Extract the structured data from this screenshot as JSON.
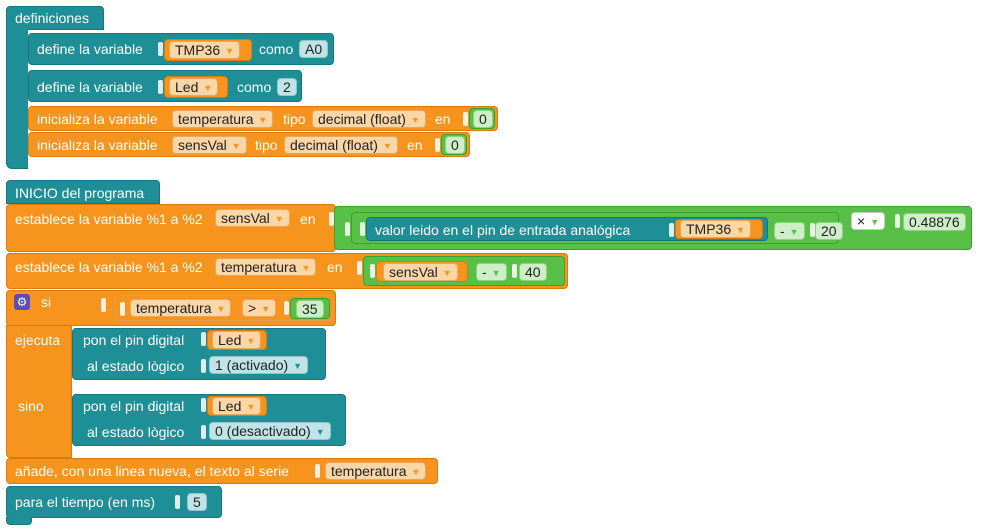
{
  "definiciones": {
    "header": "definiciones",
    "define1": {
      "label": "define la variable",
      "var": "TMP36",
      "como": "como",
      "value": "A0"
    },
    "define2": {
      "label": "define la variable",
      "var": "Led",
      "como": "como",
      "value": "2"
    },
    "init1": {
      "label": "inicializa la variable",
      "var": "temperatura",
      "tipo": "tipo",
      "type": "decimal (float)",
      "en": "en",
      "value": "0"
    },
    "init2": {
      "label": "inicializa la variable",
      "var": "sensVal",
      "tipo": "tipo",
      "type": "decimal (float)",
      "en": "en",
      "value": "0"
    }
  },
  "programa": {
    "header": "INICIO del programa",
    "set1": {
      "label": "establece la variable %1 a %2",
      "var": "sensVal",
      "en": "en",
      "read_label": "valor leido en el pin de entrada analógica",
      "pin": "TMP36",
      "op1": "-",
      "num1": "20",
      "op2": "×",
      "num2": "0.48876"
    },
    "set2": {
      "label": "establece la variable %1 a %2",
      "var": "temperatura",
      "en": "en",
      "var2": "sensVal",
      "op": "-",
      "num": "40"
    },
    "if": {
      "si": "si",
      "var": "temperatura",
      "op": ">",
      "num": "35",
      "ejecuta": "ejecuta",
      "sino": "sino",
      "then": {
        "label": "pon el pin digital",
        "pin": "Led",
        "state_label": "al estado lògico",
        "state": "1 (activado)"
      },
      "else": {
        "label": "pon el pin digital",
        "pin": "Led",
        "state_label": "al estado lògico",
        "state": "0 (desactivado)"
      }
    },
    "serial": {
      "label": "añade, con una linea nueva, el texto al serie",
      "var": "temperatura"
    },
    "delay": {
      "label": "para el tiempo  (en ms)",
      "value": "5"
    }
  },
  "colors": {
    "teal": "#1e8f96",
    "orange": "#f7941d",
    "green": "#59c047",
    "purple": "#5a4fb8"
  },
  "icons": {
    "if_settings": "gear-icon"
  }
}
